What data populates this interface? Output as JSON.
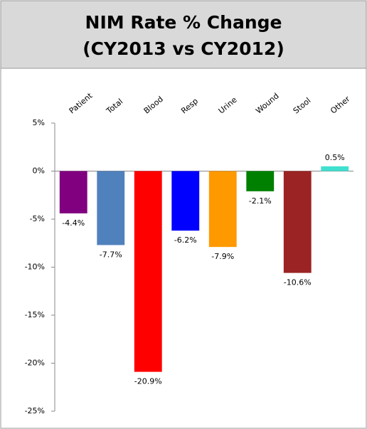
{
  "chart_data": {
    "type": "bar",
    "title": "NIM Rate % Change",
    "subtitle": "(CY2013 vs CY2012)",
    "categories": [
      "Patient",
      "Total",
      "Blood",
      "Resp",
      "Urine",
      "Wound",
      "Stool",
      "Other"
    ],
    "values": [
      -4.4,
      -7.7,
      -20.9,
      -6.2,
      -7.9,
      -2.1,
      -10.6,
      0.5
    ],
    "value_labels": [
      "-4.4%",
      "-7.7%",
      "-20.9%",
      "-6.2%",
      "-7.9%",
      "-2.1%",
      "-10.6%",
      "0.5%"
    ],
    "colors": [
      "#800080",
      "#4f81bd",
      "#ff0000",
      "#0000ff",
      "#ff9900",
      "#008000",
      "#9b2323",
      "#40e0d0"
    ],
    "ylim": [
      -25,
      5
    ],
    "yticks": [
      {
        "value": 5,
        "label": "5%"
      },
      {
        "value": 0,
        "label": "0%"
      },
      {
        "value": -5,
        "label": "-5%"
      },
      {
        "value": -10,
        "label": "-10%"
      },
      {
        "value": -15,
        "label": "-15%"
      },
      {
        "value": -20,
        "label": "-20%"
      },
      {
        "value": -25,
        "label": "-25%"
      }
    ],
    "grid": false
  }
}
